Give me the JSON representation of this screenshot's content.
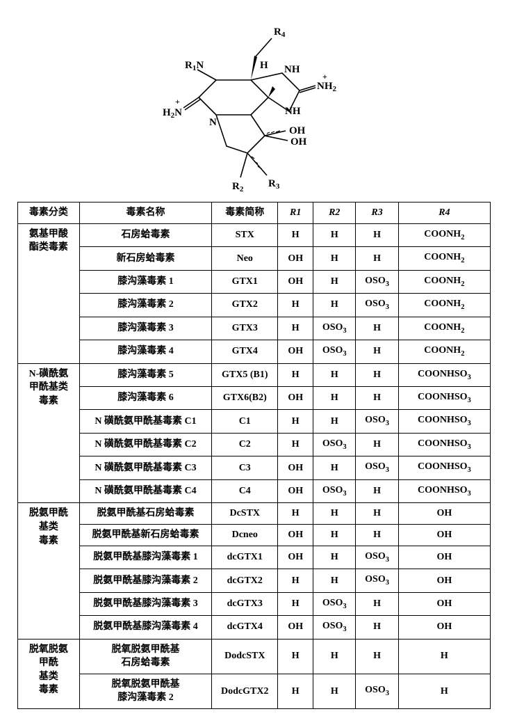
{
  "header": {
    "col1": "毒素分类",
    "col2": "毒素名称",
    "col3": "毒素简称",
    "col4": "R1",
    "col5": "R2",
    "col6": "R3",
    "col7": "R4"
  },
  "groups": [
    {
      "category": "氨基甲酸酯类毒素",
      "rows": [
        {
          "name": "石房蛤毒素",
          "abbr": "STX",
          "r1": "H",
          "r2": "H",
          "r3": "H",
          "r4": "COONH2"
        },
        {
          "name": "新石房蛤毒素",
          "abbr": "Neo",
          "r1": "OH",
          "r2": "H",
          "r3": "H",
          "r4": "COONH2"
        },
        {
          "name": "膝沟藻毒素 1",
          "abbr": "GTX1",
          "r1": "OH",
          "r2": "H",
          "r3": "OSO3",
          "r4": "COONH2"
        },
        {
          "name": "膝沟藻毒素 2",
          "abbr": "GTX2",
          "r1": "H",
          "r2": "H",
          "r3": "OSO3",
          "r4": "COONH2"
        },
        {
          "name": "膝沟藻毒素 3",
          "abbr": "GTX3",
          "r1": "H",
          "r2": "OSO3",
          "r3": "H",
          "r4": "COONH2"
        },
        {
          "name": "膝沟藻毒素 4",
          "abbr": "GTX4",
          "r1": "OH",
          "r2": "OSO3",
          "r3": "H",
          "r4": "COONH2"
        }
      ]
    },
    {
      "category": "N-磺酰氨甲酰基类毒素",
      "rows": [
        {
          "name": "膝沟藻毒素 5",
          "abbr": "GTX5 (B1)",
          "r1": "H",
          "r2": "H",
          "r3": "H",
          "r4": "COONHSO3"
        },
        {
          "name": "膝沟藻毒素 6",
          "abbr": "GTX6(B2)",
          "r1": "OH",
          "r2": "H",
          "r3": "H",
          "r4": "COONHSO3"
        },
        {
          "name": "N 磺酰氨甲酰基毒素 C1",
          "abbr": "C1",
          "r1": "H",
          "r2": "H",
          "r3": "OSO3",
          "r4": "COONHSO3"
        },
        {
          "name": "N 磺酰氨甲酰基毒素 C2",
          "abbr": "C2",
          "r1": "H",
          "r2": "OSO3",
          "r3": "H",
          "r4": "COONHSO3"
        },
        {
          "name": "N 磺酰氨甲酰基毒素 C3",
          "abbr": "C3",
          "r1": "OH",
          "r2": "H",
          "r3": "OSO3",
          "r4": "COONHSO3"
        },
        {
          "name": "N 磺酰氨甲酰基毒素 C4",
          "abbr": "C4",
          "r1": "OH",
          "r2": "OSO3",
          "r3": "H",
          "r4": "COONHSO3"
        }
      ]
    },
    {
      "category": "脱氨甲酰基类毒素",
      "rows": [
        {
          "name": "脱氨甲酰基石房蛤毒素",
          "abbr": "DcSTX",
          "r1": "H",
          "r2": "H",
          "r3": "H",
          "r4": "OH"
        },
        {
          "name": "脱氨甲酰基新石房蛤毒素",
          "abbr": "Dcneo",
          "r1": "OH",
          "r2": "H",
          "r3": "H",
          "r4": "OH"
        },
        {
          "name": "脱氨甲酰基膝沟藻毒素 1",
          "abbr": "dcGTX1",
          "r1": "OH",
          "r2": "H",
          "r3": "OSO3",
          "r4": "OH"
        },
        {
          "name": "脱氨甲酰基膝沟藻毒素 2",
          "abbr": "dcGTX2",
          "r1": "H",
          "r2": "H",
          "r3": "OSO3",
          "r4": "OH"
        },
        {
          "name": "脱氨甲酰基膝沟藻毒素 3",
          "abbr": "dcGTX3",
          "r1": "H",
          "r2": "OSO3",
          "r3": "H",
          "r4": "OH"
        },
        {
          "name": "脱氨甲酰基膝沟藻毒素 4",
          "abbr": "dcGTX4",
          "r1": "OH",
          "r2": "OSO3",
          "r3": "H",
          "r4": "OH"
        }
      ]
    },
    {
      "category": "脱氧脱氨甲酰基类毒素",
      "rows": [
        {
          "name": "脱氧脱氨甲酰基石房蛤毒素",
          "abbr": "DodcSTX",
          "r1": "H",
          "r2": "H",
          "r3": "H",
          "r4": "H",
          "multiline": true
        },
        {
          "name": "脱氧脱氨甲酰基膝沟藻毒素 2",
          "abbr": "DodcGTX2",
          "r1": "H",
          "r2": "H",
          "r3": "OSO3",
          "r4": "H",
          "multiline": true
        }
      ]
    }
  ],
  "structure_labels": {
    "r1": "R1",
    "r2": "R2",
    "r3": "R3",
    "r4": "R4",
    "h": "H",
    "nh": "NH",
    "nh2p": "NH2",
    "n": "N",
    "oh": "OH"
  },
  "style": {
    "font_size_pt": 11,
    "line_color": "#000000",
    "bg": "#ffffff"
  }
}
